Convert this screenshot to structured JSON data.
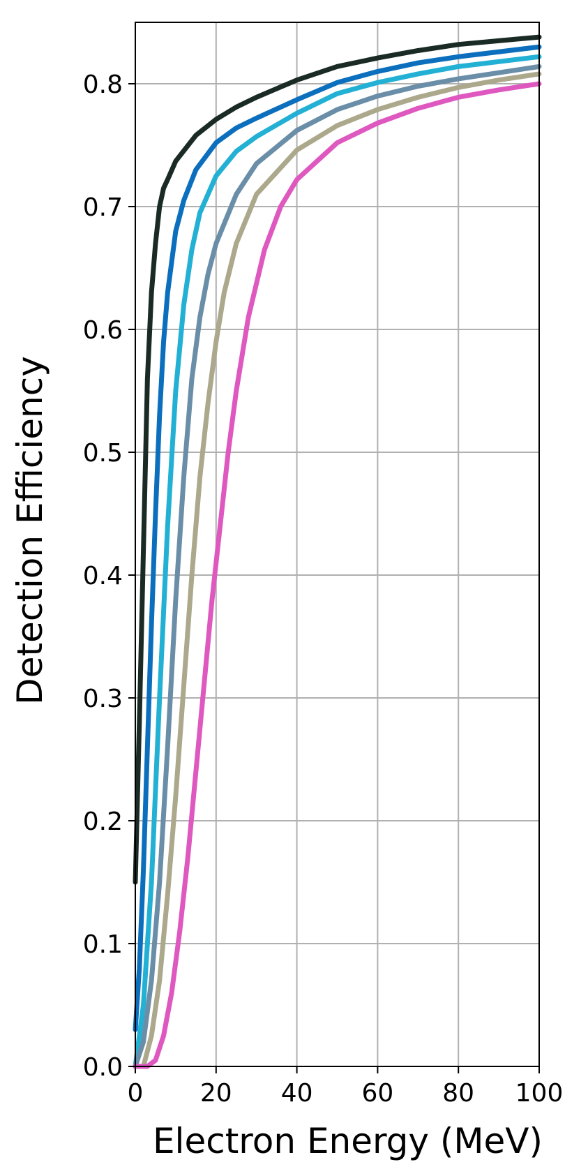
{
  "chart_data": {
    "type": "line",
    "title": "",
    "xlabel": "Electron Energy (MeV)",
    "ylabel": "Detection Efficiency",
    "xlim": [
      0,
      100
    ],
    "ylim": [
      0.0,
      0.85
    ],
    "xticks": [
      0,
      20,
      40,
      60,
      80,
      100
    ],
    "xtick_labels": [
      "0",
      "20",
      "40",
      "60",
      "80",
      "100"
    ],
    "yticks": [
      0.0,
      0.1,
      0.2,
      0.3,
      0.4,
      0.5,
      0.6,
      0.7,
      0.8
    ],
    "ytick_labels": [
      "0.0",
      "0.1",
      "0.2",
      "0.3",
      "0.4",
      "0.5",
      "0.6",
      "0.7",
      "0.8"
    ],
    "grid": true,
    "legend": "none",
    "series": [
      {
        "color": "#1a2a24",
        "x": [
          0,
          1,
          2,
          3,
          4,
          5,
          6,
          7,
          8,
          10,
          15,
          20,
          25,
          30,
          40,
          50,
          60,
          70,
          80,
          90,
          100
        ],
        "y": [
          0.15,
          0.28,
          0.42,
          0.56,
          0.63,
          0.67,
          0.7,
          0.715,
          0.722,
          0.737,
          0.758,
          0.771,
          0.781,
          0.789,
          0.803,
          0.814,
          0.821,
          0.827,
          0.832,
          0.835,
          0.838
        ]
      },
      {
        "color": "#0b6fbd",
        "x": [
          0,
          1,
          2,
          3,
          4,
          5,
          6,
          7,
          8,
          10,
          12,
          15,
          20,
          25,
          30,
          40,
          50,
          60,
          70,
          80,
          90,
          100
        ],
        "y": [
          0.03,
          0.08,
          0.16,
          0.26,
          0.36,
          0.45,
          0.53,
          0.59,
          0.63,
          0.68,
          0.705,
          0.73,
          0.752,
          0.764,
          0.772,
          0.787,
          0.801,
          0.81,
          0.817,
          0.822,
          0.826,
          0.83
        ]
      },
      {
        "color": "#22b0d4",
        "x": [
          0,
          2,
          4,
          6,
          8,
          10,
          12,
          14,
          16,
          20,
          25,
          30,
          40,
          50,
          60,
          70,
          80,
          90,
          100
        ],
        "y": [
          0.0,
          0.05,
          0.15,
          0.3,
          0.44,
          0.55,
          0.62,
          0.665,
          0.695,
          0.725,
          0.745,
          0.757,
          0.776,
          0.792,
          0.801,
          0.808,
          0.814,
          0.818,
          0.822
        ]
      },
      {
        "color": "#6a8ea8",
        "x": [
          0,
          2,
          4,
          6,
          8,
          10,
          12,
          14,
          16,
          18,
          20,
          25,
          30,
          40,
          50,
          60,
          70,
          80,
          90,
          100
        ],
        "y": [
          0.0,
          0.02,
          0.07,
          0.15,
          0.26,
          0.38,
          0.48,
          0.56,
          0.61,
          0.645,
          0.67,
          0.71,
          0.735,
          0.762,
          0.779,
          0.79,
          0.798,
          0.804,
          0.809,
          0.814
        ]
      },
      {
        "color": "#aba88c",
        "x": [
          0,
          2,
          4,
          6,
          8,
          10,
          12,
          14,
          16,
          18,
          20,
          22,
          25,
          30,
          40,
          50,
          60,
          70,
          80,
          90,
          100
        ],
        "y": [
          0.0,
          0.0,
          0.025,
          0.07,
          0.14,
          0.22,
          0.31,
          0.4,
          0.48,
          0.54,
          0.59,
          0.63,
          0.67,
          0.71,
          0.746,
          0.766,
          0.779,
          0.789,
          0.797,
          0.803,
          0.808
        ]
      },
      {
        "color": "#de58c0",
        "x": [
          0,
          3,
          5,
          7,
          9,
          11,
          13,
          15,
          17,
          19,
          21,
          23,
          25,
          28,
          32,
          36,
          40,
          50,
          60,
          70,
          80,
          90,
          100
        ],
        "y": [
          0.0,
          0.0,
          0.005,
          0.025,
          0.06,
          0.11,
          0.17,
          0.24,
          0.31,
          0.38,
          0.44,
          0.5,
          0.55,
          0.61,
          0.665,
          0.7,
          0.722,
          0.752,
          0.768,
          0.78,
          0.789,
          0.795,
          0.8
        ]
      }
    ]
  }
}
